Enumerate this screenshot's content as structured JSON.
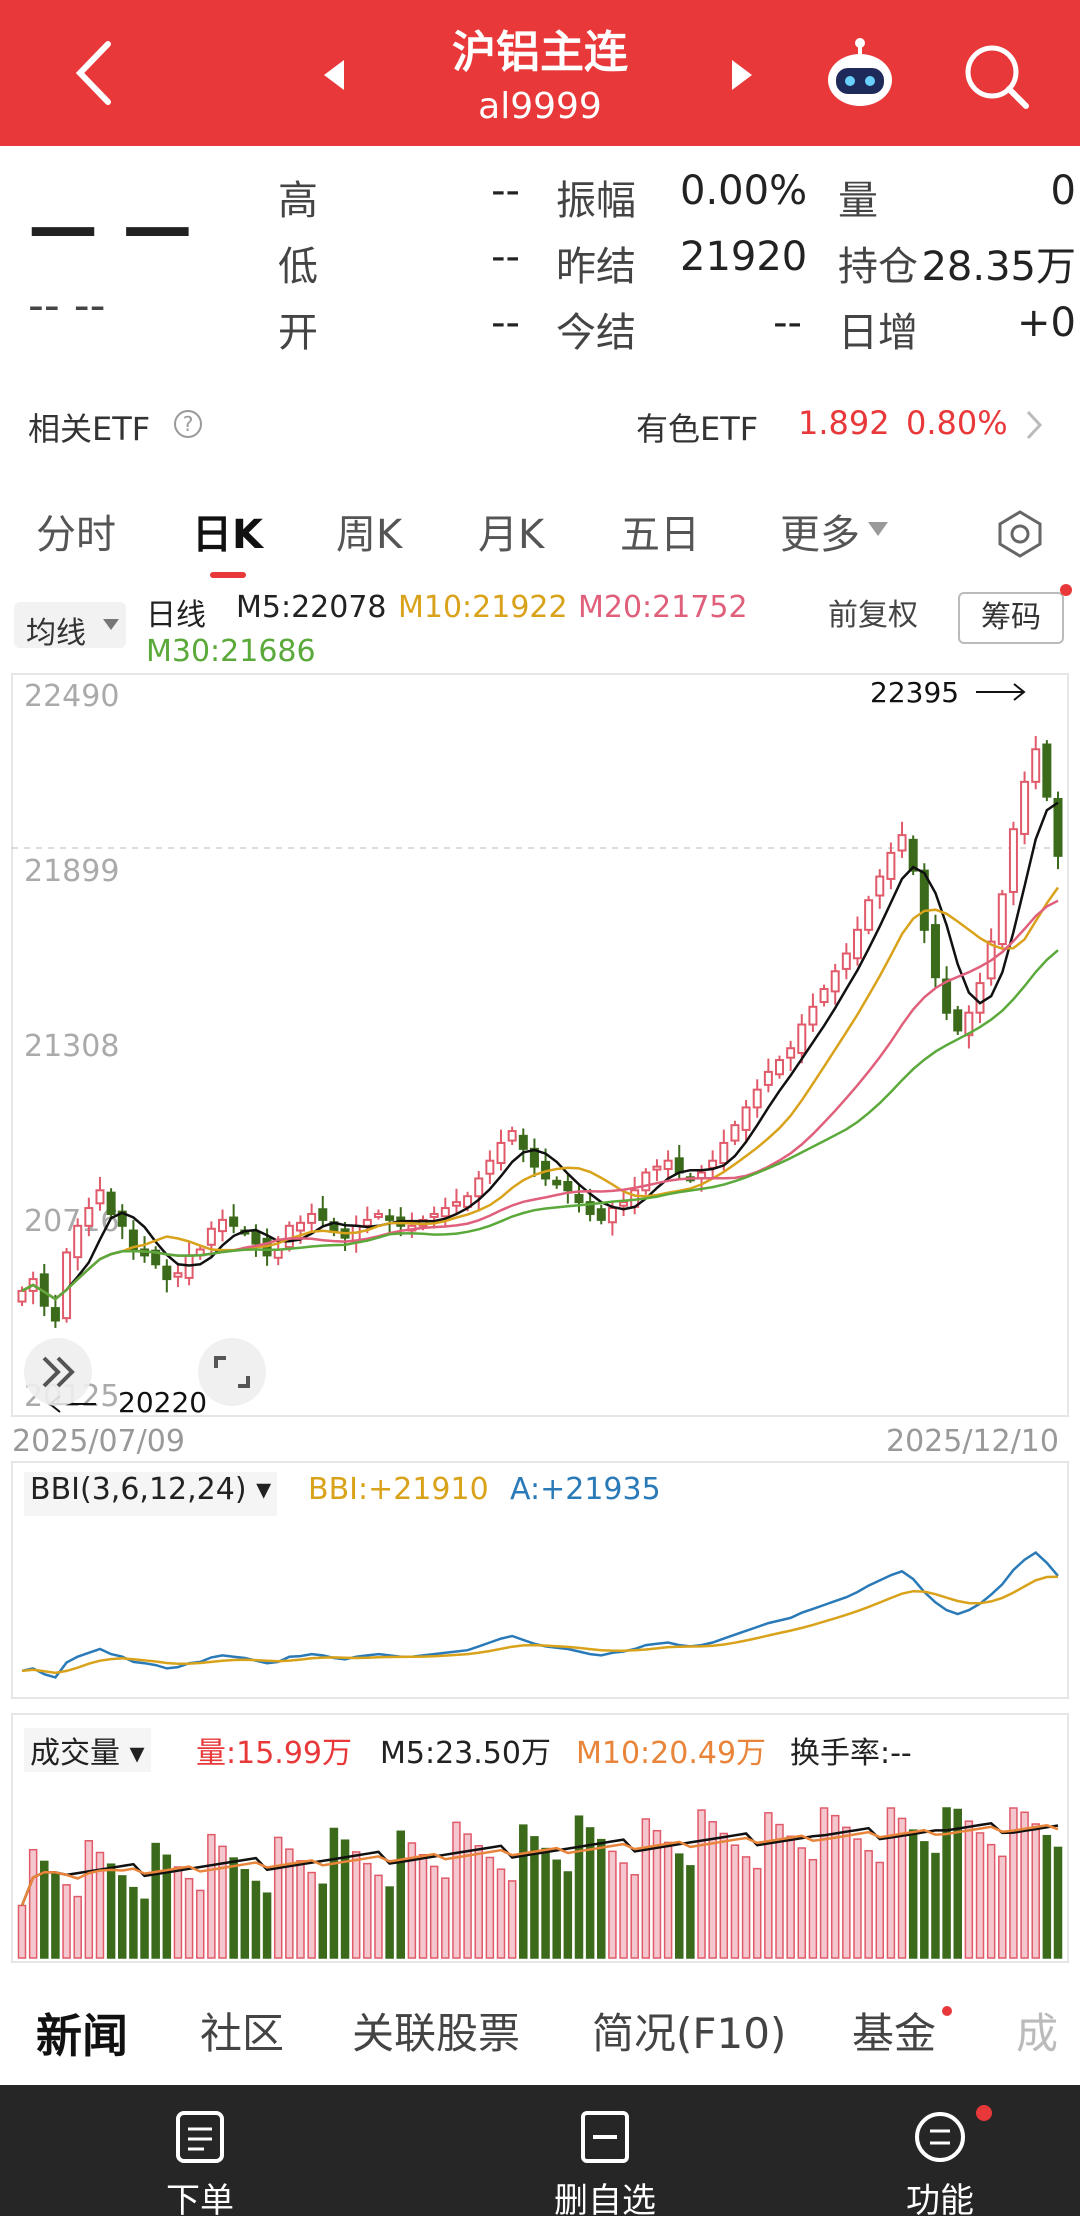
{
  "header": {
    "title": "沪铝主连",
    "code": "al9999",
    "colors": {
      "bg": "#e8383a"
    }
  },
  "quote": {
    "price": "— —",
    "change": "-- --",
    "rows": [
      {
        "l1": "高",
        "v1": "--",
        "l2": "振幅",
        "v2": "0.00%",
        "l3": "量",
        "v3": "0"
      },
      {
        "l1": "低",
        "v1": "--",
        "l2": "昨结",
        "v2": "21920",
        "l3": "持仓",
        "v3": "28.35万"
      },
      {
        "l1": "开",
        "v1": "--",
        "l2": "今结",
        "v2": "--",
        "l3": "日增",
        "v3": "+0"
      }
    ]
  },
  "etf": {
    "label": "相关ETF",
    "name": "有色ETF",
    "price": "1.892",
    "pct": "0.80%"
  },
  "tabs": [
    "分时",
    "日K",
    "周K",
    "月K",
    "五日",
    "更多"
  ],
  "ma_bar": {
    "selector": "均线",
    "period": "日线",
    "m5": "M5:22078",
    "m10": "M10:21922",
    "m20": "M20:21752",
    "m30": "M30:21686",
    "adjust": "前复权",
    "chips": "筹码"
  },
  "kline": {
    "y_labels": [
      "22490",
      "21899",
      "21308",
      "20716",
      "20125"
    ],
    "high_label": "22395",
    "low_label": "20220",
    "date_start": "2025/07/09",
    "date_end": "2025/12/10"
  },
  "bbi": {
    "selector": "BBI(3,6,12,24)",
    "bbi": "BBI:+21910",
    "a": "A:+21935"
  },
  "volume": {
    "selector": "成交量",
    "vol": "量:15.99万",
    "m5": "M5:23.50万",
    "m10": "M10:20.49万",
    "turnover": "换手率:--"
  },
  "news_tabs": [
    "新闻",
    "社区",
    "关联股票",
    "简况(F10)",
    "基金",
    "成"
  ],
  "bottom": {
    "order": "下单",
    "unwatch": "删自选",
    "func": "功能"
  },
  "chart_data": {
    "type": "candlestick",
    "x_start": "2025/07/09",
    "x_end": "2025/12/10",
    "ylim": [
      20125,
      22490
    ],
    "close": [
      20480,
      20520,
      20430,
      20380,
      20610,
      20700,
      20760,
      20820,
      20740,
      20700,
      20620,
      20600,
      20570,
      20520,
      20540,
      20600,
      20620,
      20690,
      20720,
      20700,
      20680,
      20640,
      20600,
      20620,
      20700,
      20710,
      20740,
      20720,
      20680,
      20660,
      20700,
      20720,
      20740,
      20720,
      20700,
      20700,
      20720,
      20740,
      20760,
      20780,
      20800,
      20860,
      20920,
      20980,
      21020,
      20960,
      20900,
      20860,
      20840,
      20820,
      20780,
      20740,
      20720,
      20760,
      20780,
      20820,
      20880,
      20900,
      20920,
      20880,
      20860,
      20880,
      20920,
      20980,
      21040,
      21100,
      21160,
      21220,
      21260,
      21300,
      21380,
      21440,
      21500,
      21560,
      21620,
      21700,
      21800,
      21880,
      21960,
      22020,
      21900,
      21700,
      21540,
      21420,
      21360,
      21420,
      21520,
      21660,
      21820,
      22040,
      22200,
      22310,
      22150,
      21950
    ],
    "ma_series": [
      {
        "name": "M5"
      },
      {
        "name": "M10"
      },
      {
        "name": "M20"
      },
      {
        "name": "M30"
      }
    ]
  }
}
